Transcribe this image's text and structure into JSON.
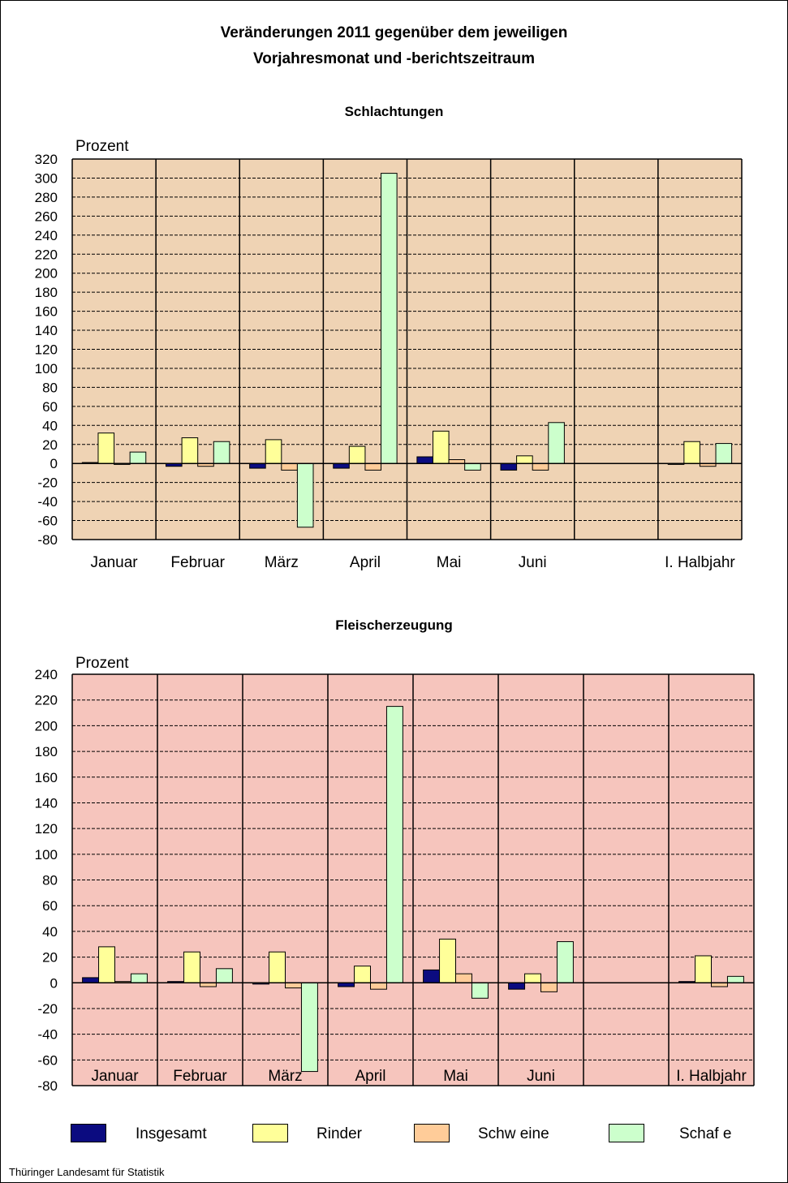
{
  "header": {
    "title_line1": "Veränderungen 2011 gegenüber dem jeweiligen",
    "title_line2": "Vorjahresmonat und -berichtszeitraum"
  },
  "footer": {
    "source": "Thüringer Landesamt für Statistik"
  },
  "colors": {
    "Insgesamt": "#0b0b80",
    "Rinder": "#ffff99",
    "Schweine": "#ffcc99",
    "Schafe": "#ccffcc",
    "chart1_bg": "#efd3b4",
    "chart2_bg": "#f6c5bd"
  },
  "legend": [
    {
      "name": "Insgesamt",
      "color": "#0b0b80"
    },
    {
      "name": "Rinder",
      "color": "#ffff99"
    },
    {
      "name": "Schw eine",
      "color": "#ffcc99"
    },
    {
      "name": "Schaf e",
      "color": "#ccffcc"
    }
  ],
  "chart_data": [
    {
      "type": "bar",
      "title": "Schlachtungen",
      "ylabel": "Prozent",
      "xlabel": "",
      "ylim": [
        -80,
        320
      ],
      "ystep": 20,
      "grid": true,
      "legend_position": "bottom",
      "categories": [
        "Januar",
        "Februar",
        "März",
        "April",
        "Mai",
        "Juni",
        "",
        "I. Halbjahr"
      ],
      "series": [
        {
          "name": "Insgesamt",
          "values": [
            1,
            -3,
            -5,
            -5,
            7,
            -7,
            null,
            -1
          ]
        },
        {
          "name": "Rinder",
          "values": [
            32,
            27,
            25,
            18,
            34,
            8,
            null,
            23
          ]
        },
        {
          "name": "Schweine",
          "values": [
            -1,
            -3,
            -7,
            -7,
            4,
            -7,
            null,
            -3
          ]
        },
        {
          "name": "Schafe",
          "values": [
            12,
            23,
            -67,
            305,
            -7,
            43,
            null,
            21
          ]
        }
      ]
    },
    {
      "type": "bar",
      "title": "Fleischerzeugung",
      "ylabel": "Prozent",
      "xlabel": "",
      "ylim": [
        -80,
        240
      ],
      "ystep": 20,
      "grid": true,
      "legend_position": "bottom",
      "categories": [
        "Januar",
        "Februar",
        "März",
        "April",
        "Mai",
        "Juni",
        "",
        "I. Halbjahr"
      ],
      "series": [
        {
          "name": "Insgesamt",
          "values": [
            4,
            1,
            -1,
            -3,
            10,
            -5,
            null,
            1
          ]
        },
        {
          "name": "Rinder",
          "values": [
            28,
            24,
            24,
            13,
            34,
            7,
            null,
            21
          ]
        },
        {
          "name": "Schweine",
          "values": [
            1,
            -3,
            -4,
            -5,
            7,
            -7,
            null,
            -3
          ]
        },
        {
          "name": "Schafe",
          "values": [
            7,
            11,
            -69,
            215,
            -12,
            32,
            null,
            5
          ]
        }
      ]
    }
  ]
}
